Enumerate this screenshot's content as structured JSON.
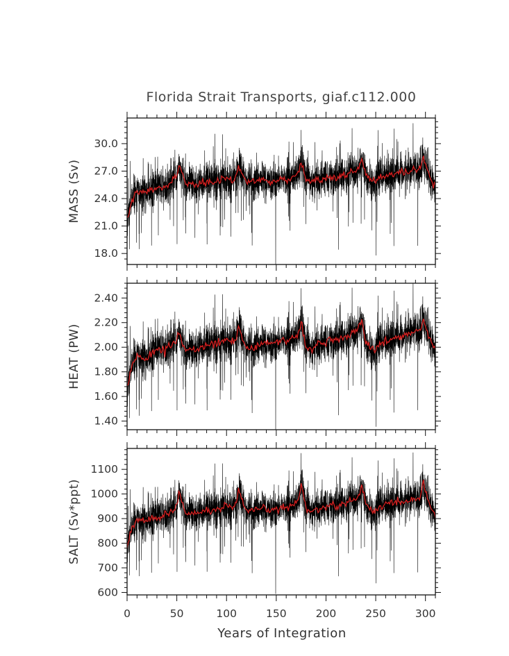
{
  "chart_data": {
    "type": "line",
    "title": "Florida Strait Transports, giaf.c112.000",
    "xlabel": "Years of Integration",
    "xlim": [
      0,
      310
    ],
    "x_ticks": [
      0,
      50,
      100,
      150,
      200,
      250,
      300
    ],
    "x_tick_labels": [
      "0",
      "50",
      "100",
      "150",
      "200",
      "250",
      "300"
    ],
    "grid": false,
    "colors": {
      "monthly": "#000000",
      "annual": "#d62020",
      "axes": "#111111"
    },
    "panels": [
      {
        "ylabel": "MASS (Sv)",
        "ylim": [
          16.8,
          32.8
        ],
        "y_ticks": [
          18,
          21,
          24,
          27,
          30
        ],
        "y_tick_labels": [
          "18.0",
          "21.0",
          "24.0",
          "27.0",
          "30.0"
        ],
        "series": [
          {
            "kind": "monthly",
            "color": "#000000",
            "noise_sd": 1.1
          },
          {
            "kind": "annual_mean",
            "color": "#d62020",
            "x": [
              0,
              2,
              5,
              10,
              15,
              20,
              25,
              30,
              35,
              40,
              45,
              50,
              52,
              55,
              58,
              60,
              65,
              70,
              75,
              80,
              85,
              90,
              95,
              100,
              105,
              110,
              112,
              115,
              118,
              120,
              125,
              130,
              135,
              140,
              145,
              150,
              155,
              160,
              165,
              170,
              173,
              175,
              178,
              180,
              185,
              190,
              195,
              200,
              205,
              210,
              215,
              220,
              225,
              230,
              233,
              236,
              238,
              240,
              245,
              250,
              255,
              260,
              265,
              270,
              275,
              280,
              285,
              290,
              295,
              298,
              300,
              303,
              306,
              310
            ],
            "y": [
              21.8,
              22.6,
              23.8,
              24.8,
              24.6,
              24.8,
              24.9,
              25.2,
              25.1,
              25.4,
              25.8,
              26.4,
              27.6,
              26.8,
              26.0,
              25.6,
              25.8,
              25.4,
              25.6,
              25.9,
              25.7,
              25.9,
              26.1,
              26.2,
              26.0,
              26.4,
              27.7,
              26.9,
              26.1,
              25.7,
              25.8,
              25.9,
              26.1,
              26.0,
              25.8,
              26.1,
              26.2,
              26.0,
              26.3,
              26.6,
              27.1,
              28.0,
              27.0,
              26.1,
              25.8,
              26.1,
              25.9,
              26.3,
              26.4,
              26.2,
              26.5,
              26.6,
              26.9,
              27.0,
              27.4,
              28.1,
              27.6,
              26.6,
              26.0,
              25.9,
              26.3,
              26.5,
              26.7,
              26.6,
              26.9,
              26.7,
              27.0,
              27.1,
              27.2,
              28.5,
              27.7,
              26.8,
              25.9,
              25.4
            ]
          }
        ]
      },
      {
        "ylabel": "HEAT (PW)",
        "ylim": [
          1.33,
          2.52
        ],
        "y_ticks": [
          1.4,
          1.6,
          1.8,
          2.0,
          2.2,
          2.4
        ],
        "y_tick_labels": [
          "1.40",
          "1.60",
          "1.80",
          "2.00",
          "2.20",
          "2.40"
        ],
        "series": [
          {
            "kind": "monthly",
            "color": "#000000",
            "noise_sd": 0.085
          },
          {
            "kind": "annual_mean",
            "color": "#d62020",
            "x": [
              0,
              2,
              5,
              10,
              15,
              20,
              25,
              30,
              35,
              40,
              45,
              50,
              52,
              55,
              58,
              60,
              65,
              70,
              75,
              80,
              85,
              90,
              95,
              100,
              105,
              110,
              112,
              115,
              118,
              120,
              125,
              130,
              135,
              140,
              145,
              150,
              155,
              160,
              165,
              170,
              173,
              175,
              178,
              180,
              185,
              190,
              195,
              200,
              205,
              210,
              215,
              220,
              225,
              230,
              233,
              236,
              238,
              240,
              245,
              250,
              255,
              260,
              265,
              270,
              275,
              280,
              285,
              290,
              295,
              298,
              300,
              303,
              306,
              310
            ],
            "y": [
              1.66,
              1.74,
              1.85,
              1.93,
              1.92,
              1.91,
              1.95,
              1.97,
              1.98,
              2.0,
              2.02,
              2.06,
              2.13,
              2.06,
              1.99,
              1.96,
              1.98,
              1.99,
              2.0,
              2.02,
              2.01,
              2.03,
              2.05,
              2.06,
              2.05,
              2.08,
              2.19,
              2.1,
              2.02,
              1.99,
              2.0,
              2.01,
              2.03,
              2.03,
              2.02,
              2.04,
              2.06,
              2.05,
              2.07,
              2.09,
              2.13,
              2.21,
              2.1,
              2.0,
              1.98,
              2.02,
              2.01,
              2.04,
              2.06,
              2.05,
              2.07,
              2.09,
              2.11,
              2.13,
              2.17,
              2.22,
              2.15,
              2.04,
              1.99,
              1.98,
              2.03,
              2.05,
              2.08,
              2.07,
              2.09,
              2.09,
              2.12,
              2.13,
              2.13,
              2.25,
              2.17,
              2.11,
              2.04,
              1.98
            ]
          }
        ]
      },
      {
        "ylabel": "SALT (Sv*ppt)",
        "ylim": [
          590,
          1185
        ],
        "y_ticks": [
          600,
          700,
          800,
          900,
          1000,
          1100
        ],
        "y_tick_labels": [
          "600",
          "700",
          "800",
          "900",
          "1000",
          "1100"
        ],
        "series": [
          {
            "kind": "monthly",
            "color": "#000000",
            "noise_sd": 40
          },
          {
            "kind": "annual_mean",
            "color": "#d62020",
            "x": [
              0,
              2,
              5,
              10,
              15,
              20,
              25,
              30,
              35,
              40,
              45,
              50,
              52,
              55,
              58,
              60,
              65,
              70,
              75,
              80,
              85,
              90,
              95,
              100,
              105,
              110,
              112,
              115,
              118,
              120,
              125,
              130,
              135,
              140,
              145,
              150,
              155,
              160,
              165,
              170,
              173,
              175,
              178,
              180,
              185,
              190,
              195,
              200,
              205,
              210,
              215,
              220,
              225,
              230,
              233,
              236,
              238,
              240,
              245,
              250,
              255,
              260,
              265,
              270,
              275,
              280,
              285,
              290,
              295,
              298,
              300,
              303,
              306,
              310
            ],
            "y": [
              790,
              820,
              860,
              895,
              890,
              893,
              900,
              905,
              910,
              918,
              930,
              950,
              1010,
              975,
              935,
              920,
              925,
              920,
              925,
              935,
              930,
              935,
              945,
              950,
              945,
              955,
              1020,
              980,
              945,
              925,
              930,
              935,
              940,
              938,
              933,
              940,
              948,
              943,
              952,
              962,
              985,
              1040,
              985,
              940,
              930,
              942,
              937,
              950,
              955,
              950,
              958,
              965,
              975,
              978,
              995,
              1030,
              1000,
              960,
              935,
              932,
              950,
              958,
              965,
              962,
              972,
              968,
              978,
              982,
              985,
              1045,
              1005,
              975,
              940,
              915
            ]
          }
        ]
      }
    ]
  }
}
